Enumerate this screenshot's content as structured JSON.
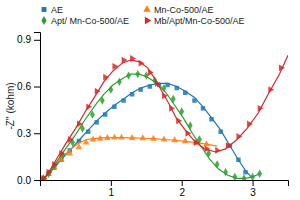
{
  "chart_data": {
    "type": "scatter",
    "ylabel": "-Z'' (kohm)",
    "xlim": [
      0,
      3.5
    ],
    "ylim": [
      0.0,
      0.95
    ],
    "xticks": [
      1,
      2,
      3
    ],
    "yticks": [
      {
        "value": 0.0,
        "label": "0.0"
      },
      0.3,
      0.6,
      0.9
    ],
    "grid": false,
    "legend": "top",
    "series": [
      {
        "name": "AE",
        "marker": "square",
        "x": [
          0.05,
          0.12,
          0.2,
          0.3,
          0.42,
          0.55,
          0.68,
          0.8,
          0.92,
          1.05,
          1.18,
          1.3,
          1.42,
          1.55,
          1.68,
          1.8,
          1.93,
          2.05,
          2.18,
          2.3,
          2.42,
          2.55,
          2.68,
          2.8,
          2.9
        ],
        "values": [
          0.01,
          0.04,
          0.08,
          0.13,
          0.19,
          0.25,
          0.31,
          0.37,
          0.42,
          0.47,
          0.51,
          0.55,
          0.58,
          0.6,
          0.61,
          0.61,
          0.59,
          0.56,
          0.51,
          0.46,
          0.39,
          0.31,
          0.22,
          0.13,
          0.05
        ],
        "curve": {
          "x": [
            0.02,
            0.08,
            0.15,
            0.22,
            0.32,
            0.44,
            0.56,
            0.68,
            0.8,
            0.92,
            1.05,
            1.18,
            1.3,
            1.42,
            1.55,
            1.68,
            1.8,
            1.93,
            2.05,
            2.18,
            2.3,
            2.42,
            2.55,
            2.68,
            2.8,
            2.9,
            2.98
          ],
          "values": [
            0.005,
            0.02,
            0.05,
            0.09,
            0.14,
            0.2,
            0.26,
            0.32,
            0.38,
            0.43,
            0.48,
            0.52,
            0.56,
            0.59,
            0.61,
            0.62,
            0.62,
            0.6,
            0.57,
            0.53,
            0.47,
            0.4,
            0.32,
            0.22,
            0.13,
            0.06,
            0.02
          ]
        }
      },
      {
        "name": "Mn-Co-500/AE",
        "marker": "triangle-up",
        "x": [
          0.05,
          0.12,
          0.2,
          0.3,
          0.42,
          0.55,
          0.65,
          0.75,
          0.85,
          0.95,
          1.05,
          1.15,
          1.3,
          1.45,
          1.6,
          1.75,
          1.9,
          2.05,
          2.2,
          2.35
        ],
        "values": [
          0.01,
          0.04,
          0.08,
          0.13,
          0.17,
          0.21,
          0.24,
          0.26,
          0.265,
          0.27,
          0.272,
          0.272,
          0.27,
          0.268,
          0.265,
          0.26,
          0.255,
          0.248,
          0.24,
          0.23
        ],
        "curve": {
          "x": [
            0.02,
            0.08,
            0.15,
            0.22,
            0.32,
            0.44,
            0.56,
            0.66,
            0.76,
            0.86,
            0.96,
            1.06,
            1.18,
            1.32,
            1.46,
            1.6,
            1.75,
            1.9,
            2.05,
            2.2,
            2.35,
            2.5
          ],
          "values": [
            0.005,
            0.02,
            0.06,
            0.1,
            0.15,
            0.2,
            0.24,
            0.26,
            0.265,
            0.27,
            0.272,
            0.272,
            0.272,
            0.27,
            0.268,
            0.265,
            0.26,
            0.255,
            0.248,
            0.24,
            0.23,
            0.218
          ]
        }
      },
      {
        "name": "Apt/ Mn-Co-500/AE",
        "marker": "diamond",
        "x": [
          0.05,
          0.12,
          0.2,
          0.32,
          0.46,
          0.6,
          0.74,
          0.88,
          1.0,
          1.12,
          1.25,
          1.38,
          1.5,
          1.62,
          1.75,
          1.88,
          2.0,
          2.12,
          2.25,
          2.38,
          2.5,
          2.62,
          2.75,
          2.88,
          3.0,
          3.1
        ],
        "values": [
          0.01,
          0.04,
          0.09,
          0.16,
          0.24,
          0.33,
          0.42,
          0.51,
          0.58,
          0.63,
          0.67,
          0.68,
          0.67,
          0.64,
          0.59,
          0.52,
          0.44,
          0.35,
          0.26,
          0.17,
          0.1,
          0.05,
          0.02,
          0.01,
          0.02,
          0.04
        ],
        "curve": {
          "x": [
            0.02,
            0.08,
            0.15,
            0.24,
            0.36,
            0.5,
            0.64,
            0.78,
            0.9,
            1.03,
            1.16,
            1.28,
            1.4,
            1.52,
            1.65,
            1.78,
            1.9,
            2.02,
            2.15,
            2.28,
            2.4,
            2.52,
            2.65,
            2.78,
            2.9,
            3.0,
            3.1
          ],
          "values": [
            0.005,
            0.02,
            0.06,
            0.12,
            0.2,
            0.29,
            0.39,
            0.48,
            0.55,
            0.61,
            0.65,
            0.68,
            0.68,
            0.66,
            0.62,
            0.56,
            0.48,
            0.4,
            0.3,
            0.21,
            0.13,
            0.07,
            0.03,
            0.01,
            0.01,
            0.02,
            0.04
          ]
        }
      },
      {
        "name": "Mb/Apt/Mn-Co-500/AE",
        "marker": "triangle-right",
        "x": [
          0.05,
          0.12,
          0.2,
          0.3,
          0.42,
          0.55,
          0.68,
          0.8,
          0.92,
          1.05,
          1.18,
          1.3,
          1.42,
          1.55,
          1.65,
          1.75,
          1.85,
          1.95,
          2.08,
          2.2,
          2.35,
          2.5,
          2.65,
          2.8,
          2.95,
          3.1,
          3.25,
          3.4
        ],
        "values": [
          0.01,
          0.05,
          0.1,
          0.17,
          0.26,
          0.36,
          0.47,
          0.57,
          0.66,
          0.73,
          0.77,
          0.78,
          0.75,
          0.69,
          0.62,
          0.54,
          0.46,
          0.38,
          0.3,
          0.24,
          0.2,
          0.19,
          0.22,
          0.28,
          0.36,
          0.46,
          0.58,
          0.72
        ],
        "curve": {
          "x": [
            0.02,
            0.08,
            0.15,
            0.24,
            0.36,
            0.5,
            0.64,
            0.78,
            0.9,
            1.03,
            1.16,
            1.28,
            1.4,
            1.52,
            1.62,
            1.72,
            1.82,
            1.92,
            2.05,
            2.18,
            2.32,
            2.48,
            2.62,
            2.78,
            2.92,
            3.08,
            3.22,
            3.38,
            3.5
          ],
          "values": [
            0.005,
            0.02,
            0.07,
            0.14,
            0.23,
            0.33,
            0.44,
            0.54,
            0.63,
            0.7,
            0.75,
            0.77,
            0.76,
            0.72,
            0.65,
            0.57,
            0.49,
            0.4,
            0.32,
            0.25,
            0.2,
            0.18,
            0.2,
            0.26,
            0.33,
            0.43,
            0.55,
            0.68,
            0.8
          ]
        }
      }
    ]
  }
}
